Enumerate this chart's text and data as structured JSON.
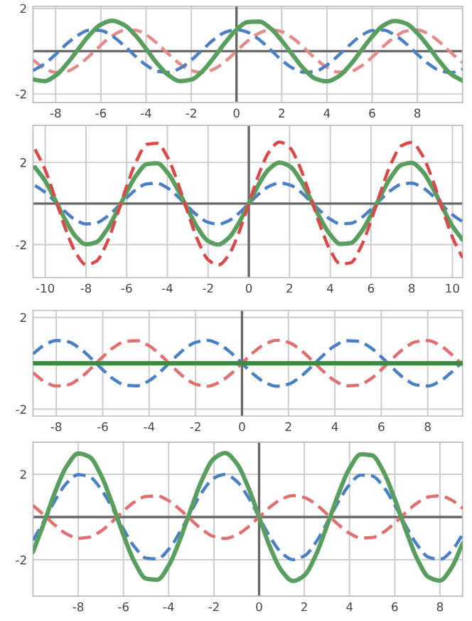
{
  "chart_data": [
    {
      "type": "line",
      "x": [
        -9,
        -8.5,
        -8,
        -7.5,
        -7,
        -6.5,
        -6,
        -5.5,
        -5,
        -4.5,
        -4,
        -3.5,
        -3,
        -2.5,
        -2,
        -1.5,
        -1,
        -0.5,
        0,
        0.5,
        1,
        1.5,
        2,
        2.5,
        3,
        3.5,
        4,
        4.5,
        5,
        5.5,
        6,
        6.5,
        7,
        7.5,
        8,
        8.5,
        9,
        9.5,
        10
      ],
      "series": [
        {
          "color": "#e38b8b",
          "line_style": "dashed",
          "values": [
            -0.41,
            -0.8,
            -0.99,
            -0.94,
            -0.66,
            -0.22,
            0.28,
            0.71,
            0.96,
            0.98,
            0.76,
            0.35,
            -0.14,
            -0.6,
            -0.91,
            -1.0,
            -0.84,
            -0.48,
            0,
            0.48,
            0.84,
            1.0,
            0.91,
            0.6,
            0.14,
            -0.35,
            -0.76,
            -0.98,
            -0.96,
            -0.71,
            -0.28,
            0.22,
            0.66,
            0.94,
            0.99,
            0.8,
            0.41,
            -0.08,
            -0.54
          ]
        },
        {
          "color": "#4a7fc4",
          "line_style": "dashed",
          "values": [
            -0.91,
            -0.6,
            -0.15,
            0.35,
            0.75,
            0.98,
            0.96,
            0.71,
            0.28,
            -0.21,
            -0.65,
            -0.94,
            -0.99,
            -0.8,
            -0.42,
            0.07,
            0.54,
            0.88,
            1,
            0.88,
            0.54,
            0.07,
            -0.42,
            -0.8,
            -0.99,
            -0.94,
            -0.65,
            -0.21,
            0.28,
            0.71,
            0.96,
            0.98,
            0.75,
            0.35,
            -0.15,
            -0.6,
            -0.91,
            -1.0,
            -0.84
          ]
        },
        {
          "color": "#5a9e5f",
          "line_style": "solid",
          "values": [
            -1.32,
            -1.4,
            -1.14,
            -0.59,
            0.09,
            0.76,
            1.24,
            1.42,
            1.24,
            0.77,
            0.11,
            -0.59,
            -1.13,
            -1.4,
            -1.33,
            -0.93,
            -0.3,
            0.4,
            1,
            1.36,
            1.38,
            1.07,
            0.49,
            -0.2,
            -0.85,
            -1.29,
            -1.41,
            -1.19,
            -0.68,
            0.0,
            0.68,
            1.2,
            1.41,
            1.29,
            0.84,
            0.2,
            -0.5,
            -1.08,
            -1.38
          ]
        }
      ],
      "xlim": [
        -9,
        10
      ],
      "ylim": [
        -2.4,
        2.1
      ],
      "xticks": [
        -8,
        -6,
        -4,
        -2,
        0,
        2,
        4,
        6,
        8
      ],
      "yticks": [
        -2,
        2
      ],
      "grid": true,
      "ref_lines": [
        {
          "axis": "x",
          "value": 0,
          "color": "#666666"
        },
        {
          "axis": "y",
          "value": 0,
          "color": "#666666"
        }
      ]
    },
    {
      "type": "line",
      "x": [
        -10.5,
        -10,
        -9.5,
        -9,
        -8.5,
        -8,
        -7.5,
        -7,
        -6.5,
        -6,
        -5.5,
        -5,
        -4.5,
        -4,
        -3.5,
        -3,
        -2.5,
        -2,
        -1.5,
        -1,
        -0.5,
        0,
        0.5,
        1,
        1.5,
        2,
        2.5,
        3,
        3.5,
        4,
        4.5,
        5,
        5.5,
        6,
        6.5,
        7,
        7.5,
        8,
        8.5,
        9,
        9.5,
        10,
        10.5
      ],
      "series": [
        {
          "color": "#4a7fc4",
          "line_style": "dashed",
          "values": [
            0.88,
            0.54,
            0.08,
            -0.41,
            -0.8,
            -0.99,
            -0.94,
            -0.66,
            -0.22,
            0.28,
            0.71,
            0.96,
            0.98,
            0.76,
            0.35,
            -0.14,
            -0.6,
            -0.91,
            -1.0,
            -0.84,
            -0.48,
            0,
            0.48,
            0.84,
            1.0,
            0.91,
            0.6,
            0.14,
            -0.35,
            -0.76,
            -0.98,
            -0.96,
            -0.71,
            -0.28,
            0.22,
            0.66,
            0.94,
            0.99,
            0.8,
            0.41,
            -0.08,
            -0.54,
            -0.88
          ]
        },
        {
          "color": "#5a9e5f",
          "line_style": "solid",
          "values": [
            1.76,
            1.09,
            0.15,
            -0.82,
            -1.6,
            -1.98,
            -1.88,
            -1.31,
            -0.43,
            0.56,
            1.41,
            1.92,
            1.96,
            1.51,
            0.7,
            -0.28,
            -1.2,
            -1.82,
            -1.99,
            -1.68,
            -0.96,
            0,
            0.96,
            1.68,
            1.99,
            1.82,
            1.2,
            0.28,
            -0.7,
            -1.51,
            -1.96,
            -1.92,
            -1.41,
            -0.56,
            0.43,
            1.31,
            1.88,
            1.98,
            1.6,
            0.82,
            -0.15,
            -1.09,
            -1.76
          ]
        },
        {
          "color": "#d84a4a",
          "line_style": "dashed",
          "values": [
            2.64,
            1.63,
            0.23,
            -1.24,
            -2.39,
            -2.97,
            -2.81,
            -1.97,
            -0.64,
            0.84,
            2.12,
            2.88,
            2.93,
            2.27,
            1.05,
            -0.42,
            -1.8,
            -2.73,
            -2.99,
            -2.52,
            -1.44,
            0,
            1.44,
            2.52,
            2.99,
            2.73,
            1.8,
            0.42,
            -1.05,
            -2.27,
            -2.93,
            -2.88,
            -2.12,
            -0.84,
            0.64,
            1.97,
            2.81,
            2.97,
            2.39,
            1.24,
            -0.23,
            -1.63,
            -2.64
          ]
        }
      ],
      "xlim": [
        -10.6,
        10.5
      ],
      "ylim": [
        -3.6,
        3.8
      ],
      "xticks": [
        -10,
        -8,
        -6,
        -4,
        -2,
        0,
        2,
        4,
        6,
        8,
        10
      ],
      "yticks": [
        -2,
        2
      ],
      "grid": true,
      "ref_lines": [
        {
          "axis": "x",
          "value": 0,
          "color": "#666666"
        },
        {
          "axis": "y",
          "value": 0,
          "color": "#666666"
        }
      ]
    },
    {
      "type": "line",
      "x": [
        -9,
        -8.5,
        -8,
        -7.5,
        -7,
        -6.5,
        -6,
        -5.5,
        -5,
        -4.5,
        -4,
        -3.5,
        -3,
        -2.5,
        -2,
        -1.5,
        -1,
        -0.5,
        0,
        0.5,
        1,
        1.5,
        2,
        2.5,
        3,
        3.5,
        4,
        4.5,
        5,
        5.5,
        6,
        6.5,
        7,
        7.5,
        8,
        8.5,
        9,
        9.5
      ],
      "series": [
        {
          "color": "#e07070",
          "line_style": "dashed",
          "values": [
            -0.41,
            -0.8,
            -0.99,
            -0.94,
            -0.66,
            -0.22,
            0.28,
            0.71,
            0.96,
            0.98,
            0.76,
            0.35,
            -0.14,
            -0.6,
            -0.91,
            -1.0,
            -0.84,
            -0.48,
            0,
            0.48,
            0.84,
            1.0,
            0.91,
            0.6,
            0.14,
            -0.35,
            -0.76,
            -0.98,
            -0.96,
            -0.71,
            -0.28,
            0.22,
            0.66,
            0.94,
            0.99,
            0.8,
            0.41,
            -0.08
          ]
        },
        {
          "color": "#4a7fc4",
          "line_style": "dashed",
          "values": [
            0.41,
            0.8,
            0.99,
            0.94,
            0.66,
            0.22,
            -0.28,
            -0.71,
            -0.96,
            -0.98,
            -0.76,
            -0.35,
            0.14,
            0.6,
            0.91,
            1.0,
            0.84,
            0.48,
            0,
            -0.48,
            -0.84,
            -1.0,
            -0.91,
            -0.6,
            -0.14,
            0.35,
            0.76,
            0.98,
            0.96,
            0.71,
            0.28,
            -0.22,
            -0.66,
            -0.94,
            -0.99,
            -0.8,
            -0.41,
            0.08
          ]
        },
        {
          "color": "#3d8b40",
          "line_style": "solid",
          "values": [
            0,
            0,
            0,
            0,
            0,
            0,
            0,
            0,
            0,
            0,
            0,
            0,
            0,
            0,
            0,
            0,
            0,
            0,
            0,
            0,
            0,
            0,
            0,
            0,
            0,
            0,
            0,
            0,
            0,
            0,
            0,
            0,
            0,
            0,
            0,
            0,
            0,
            0
          ]
        }
      ],
      "xlim": [
        -9,
        9.5
      ],
      "ylim": [
        -2.3,
        2.3
      ],
      "xticks": [
        -8,
        -6,
        -4,
        -2,
        0,
        2,
        4,
        6,
        8
      ],
      "yticks": [
        -2,
        2
      ],
      "grid": true,
      "ref_lines": [
        {
          "axis": "x",
          "value": 0,
          "color": "#666666"
        }
      ]
    },
    {
      "type": "line",
      "x": [
        -10,
        -9.5,
        -9,
        -8.5,
        -8,
        -7.5,
        -7,
        -6.5,
        -6,
        -5.5,
        -5,
        -4.5,
        -4,
        -3.5,
        -3,
        -2.5,
        -2,
        -1.5,
        -1,
        -0.5,
        0,
        0.5,
        1,
        1.5,
        2,
        2.5,
        3,
        3.5,
        4,
        4.5,
        5,
        5.5,
        6,
        6.5,
        7,
        7.5,
        8,
        8.5,
        9
      ],
      "series": [
        {
          "color": "#e07070",
          "line_style": "dashed",
          "values": [
            0.54,
            0.08,
            -0.41,
            -0.8,
            -0.99,
            -0.94,
            -0.66,
            -0.22,
            0.28,
            0.71,
            0.96,
            0.98,
            0.76,
            0.35,
            -0.14,
            -0.6,
            -0.91,
            -1.0,
            -0.84,
            -0.48,
            0,
            0.48,
            0.84,
            1.0,
            0.91,
            0.6,
            0.14,
            -0.35,
            -0.76,
            -0.98,
            -0.96,
            -0.71,
            -0.28,
            0.22,
            0.66,
            0.94,
            0.99,
            0.8,
            0.41
          ]
        },
        {
          "color": "#4a7fc4",
          "line_style": "dashed",
          "values": [
            -1.09,
            -0.15,
            0.82,
            1.6,
            1.98,
            1.88,
            1.31,
            0.43,
            -0.56,
            -1.41,
            -1.92,
            -1.96,
            -1.51,
            -0.7,
            0.28,
            1.2,
            1.82,
            1.99,
            1.68,
            0.96,
            0,
            -0.96,
            -1.68,
            -1.99,
            -1.82,
            -1.2,
            -0.28,
            0.7,
            1.51,
            1.96,
            1.92,
            1.41,
            0.56,
            -0.43,
            -1.31,
            -1.88,
            -1.98,
            -1.6,
            -0.82
          ]
        },
        {
          "color": "#5a9e5f",
          "line_style": "solid",
          "values": [
            -1.63,
            -0.23,
            1.24,
            2.39,
            2.97,
            2.81,
            1.97,
            0.64,
            -0.84,
            -2.12,
            -2.88,
            -2.93,
            -2.27,
            -1.05,
            0.42,
            1.8,
            2.73,
            2.99,
            2.52,
            1.44,
            0,
            -1.44,
            -2.52,
            -2.99,
            -2.73,
            -1.8,
            -0.42,
            1.05,
            2.27,
            2.93,
            2.88,
            2.12,
            0.84,
            -0.64,
            -1.97,
            -2.81,
            -2.97,
            -2.39,
            -1.24
          ]
        }
      ],
      "xlim": [
        -10,
        9
      ],
      "ylim": [
        -3.7,
        3.5
      ],
      "xticks": [
        -8,
        -6,
        -4,
        -2,
        0,
        2,
        4,
        6,
        8
      ],
      "yticks": [
        -2,
        2
      ],
      "grid": true,
      "ref_lines": [
        {
          "axis": "x",
          "value": 0,
          "color": "#666666"
        },
        {
          "axis": "y",
          "value": 0,
          "color": "#666666"
        }
      ]
    }
  ]
}
